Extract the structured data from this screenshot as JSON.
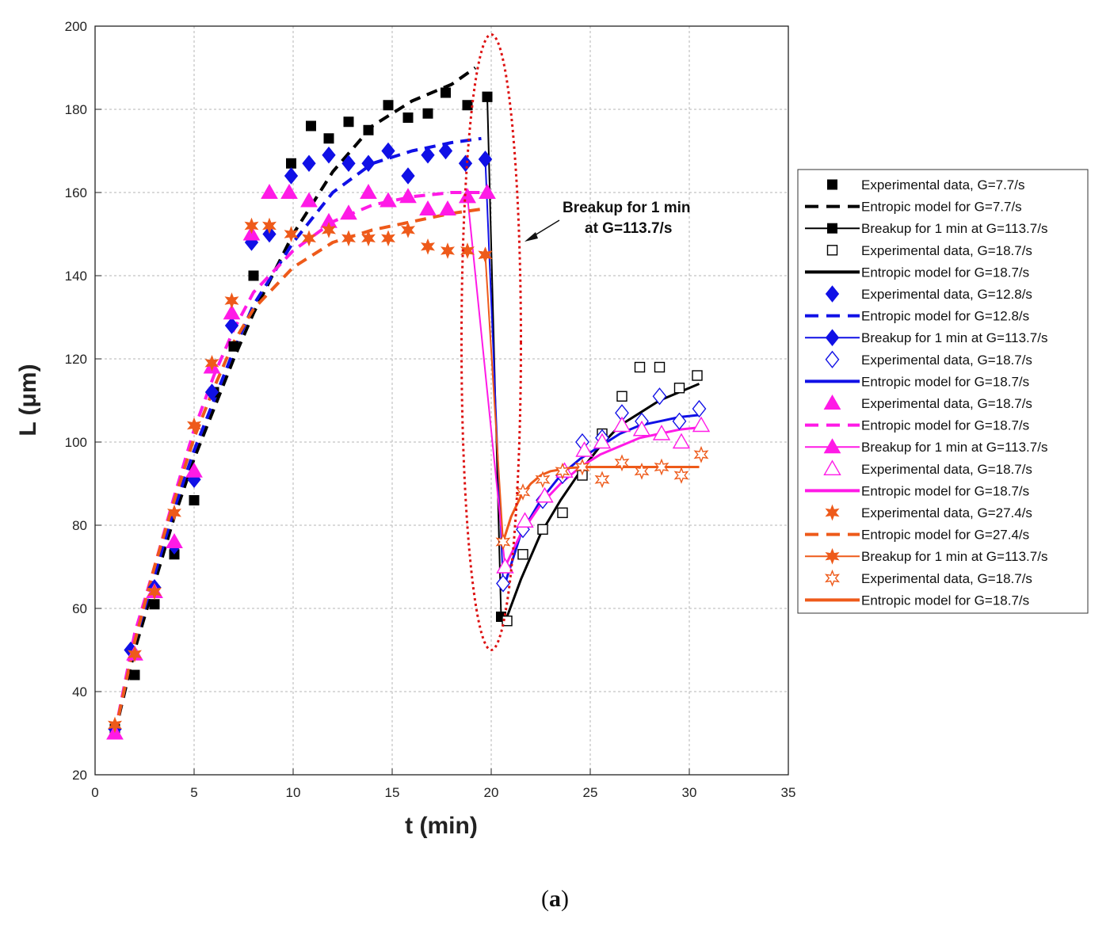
{
  "caption": {
    "open": "(",
    "letter": "a",
    "close": ")"
  },
  "annotation": {
    "line1": "Breakup for 1 min",
    "line2": "at G=113.7/s"
  },
  "chart_data": {
    "type": "scatter",
    "title": "",
    "xlabel": "t (min)",
    "ylabel": "L (μm)",
    "xlim": [
      0,
      35
    ],
    "ylim": [
      20,
      200
    ],
    "xticks": [
      0,
      5,
      10,
      15,
      20,
      25,
      30,
      35
    ],
    "yticks": [
      20,
      40,
      60,
      80,
      100,
      120,
      140,
      160,
      180,
      200
    ],
    "grid": true,
    "legend_position": "right",
    "highlight_ellipse": {
      "center": [
        20,
        124
      ],
      "radius_x": 1.5,
      "radius_y": 74
    },
    "series": [
      {
        "name": "Experimental data, G=7.7/s",
        "kind": "marker",
        "marker": "square-filled",
        "color": "#000000",
        "x": [
          1,
          2,
          3,
          4,
          5,
          6,
          7,
          8,
          9.9,
          10.9,
          11.8,
          12.8,
          13.8,
          14.8,
          15.8,
          16.8,
          17.7,
          18.8,
          19.8
        ],
        "y": [
          31,
          44,
          61,
          73,
          86,
          112,
          123,
          140,
          167,
          176,
          173,
          177,
          175,
          181,
          178,
          179,
          184,
          181,
          183
        ]
      },
      {
        "name": "Entropic model for G=7.7/s",
        "kind": "line",
        "style": "dashed",
        "width": 4,
        "color": "#000000",
        "x": [
          1,
          2,
          3,
          4,
          5,
          6,
          7,
          8,
          10,
          12,
          14,
          16,
          18,
          19.2
        ],
        "y": [
          30,
          50,
          66,
          82,
          96,
          108,
          120,
          131,
          150,
          165,
          176,
          182,
          186,
          190
        ]
      },
      {
        "name": "Breakup for 1 min at G=113.7/s",
        "kind": "line-marker",
        "marker": "square-filled",
        "width": 2,
        "color": "#000000",
        "x": [
          19.8,
          20.5
        ],
        "y": [
          183,
          58
        ]
      },
      {
        "name": "Experimental data, G=18.7/s",
        "kind": "marker",
        "marker": "square-open",
        "color": "#000000",
        "x": [
          20.8,
          21.6,
          22.6,
          23.6,
          24.6,
          25.6,
          26.6,
          27.5,
          28.5,
          29.5,
          30.4
        ],
        "y": [
          57,
          73,
          79,
          83,
          92,
          102,
          111,
          118,
          118,
          113,
          116
        ]
      },
      {
        "name": "Entropic model for G=18.7/s",
        "kind": "line",
        "style": "solid",
        "width": 3,
        "color": "#000000",
        "x": [
          20.8,
          21.5,
          22.5,
          23.5,
          24.5,
          25.5,
          26.5,
          27.5,
          28.5,
          29.5,
          30.5
        ],
        "y": [
          58,
          67,
          78,
          86,
          93,
          99,
          104,
          107,
          110,
          112,
          114
        ]
      },
      {
        "name": "Experimental data, G=12.8/s",
        "kind": "marker",
        "marker": "diamond-filled",
        "color": "#1010e6",
        "x": [
          1,
          1.8,
          3,
          4,
          5,
          5.9,
          6.9,
          7.9,
          8.8,
          9.9,
          10.8,
          11.8,
          12.8,
          13.8,
          14.8,
          15.8,
          16.8,
          17.7,
          18.7,
          19.7
        ],
        "y": [
          31,
          50,
          65,
          75,
          91,
          112,
          128,
          148,
          150,
          164,
          167,
          169,
          167,
          167,
          170,
          164,
          169,
          170,
          167,
          168
        ]
      },
      {
        "name": "Entropic model for G=12.8/s",
        "kind": "line",
        "style": "dashed",
        "width": 4,
        "color": "#1010e6",
        "x": [
          1,
          2,
          3,
          4,
          5,
          6,
          7,
          8,
          10,
          12,
          14,
          16,
          18,
          19.5
        ],
        "y": [
          30,
          52,
          68,
          84,
          98,
          110,
          122,
          133,
          148,
          160,
          167,
          170,
          172,
          173
        ]
      },
      {
        "name": "Breakup for 1 min at G=113.7/s",
        "kind": "line-marker",
        "marker": "diamond-filled",
        "width": 2,
        "color": "#1010e6",
        "x": [
          19.7,
          20.6
        ],
        "y": [
          168,
          66
        ]
      },
      {
        "name": "Experimental data, G=18.7/s",
        "kind": "marker",
        "marker": "diamond-open",
        "color": "#1010e6",
        "x": [
          20.6,
          21.6,
          22.6,
          23.6,
          24.6,
          25.6,
          26.6,
          27.6,
          28.5,
          29.5,
          30.5
        ],
        "y": [
          66,
          79,
          86,
          92,
          100,
          101,
          107,
          105,
          111,
          105,
          108
        ]
      },
      {
        "name": "Entropic model for G=18.7/s",
        "kind": "line",
        "style": "solid",
        "width": 3,
        "color": "#1010e6",
        "x": [
          20.7,
          21.5,
          22.5,
          23.5,
          24.5,
          25.5,
          26.5,
          27.5,
          28.5,
          29.5,
          30.5
        ],
        "y": [
          66,
          78,
          86,
          92,
          96,
          99,
          102,
          104,
          105,
          106,
          106.5
        ]
      },
      {
        "name": "Experimental data, G=18.7/s",
        "kind": "marker",
        "marker": "triangle-filled",
        "color": "#ff1ae6",
        "x": [
          1,
          2,
          3,
          4,
          5,
          5.9,
          6.9,
          7.9,
          8.8,
          9.8,
          10.8,
          11.8,
          12.8,
          13.8,
          14.8,
          15.8,
          16.8,
          17.8,
          18.8,
          19.8
        ],
        "y": [
          30,
          49,
          64,
          76,
          93,
          118,
          131,
          150,
          160,
          160,
          158,
          153,
          155,
          160,
          158,
          159,
          156,
          156,
          159,
          160
        ]
      },
      {
        "name": "Entropic model for G=18.7/s",
        "kind": "line",
        "style": "dashed",
        "width": 4,
        "color": "#ff1ae6",
        "x": [
          1,
          2,
          3,
          4,
          5,
          6,
          7,
          8,
          10,
          12,
          14,
          16,
          18,
          19.5
        ],
        "y": [
          30,
          54,
          70,
          87,
          103,
          116,
          127,
          136,
          146,
          153,
          157,
          159,
          160,
          160
        ]
      },
      {
        "name": "Breakup for 1 min at G=113.7/s",
        "kind": "line-marker",
        "marker": "triangle-filled",
        "width": 2,
        "color": "#ff1ae6",
        "x": [
          18.8,
          20.7
        ],
        "y": [
          159,
          70
        ]
      },
      {
        "name": "Experimental data, G=18.7/s",
        "kind": "marker",
        "marker": "triangle-open",
        "color": "#ff1ae6",
        "x": [
          20.7,
          21.7,
          22.7,
          23.7,
          24.7,
          25.6,
          26.6,
          27.6,
          28.6,
          29.6,
          30.6
        ],
        "y": [
          70,
          81,
          87,
          93,
          98,
          100,
          104,
          103,
          102,
          100,
          104
        ]
      },
      {
        "name": "Entropic model for G=18.7/s",
        "kind": "line",
        "style": "solid",
        "width": 3,
        "color": "#ff1ae6",
        "x": [
          20.7,
          21.5,
          22.5,
          23.5,
          24.5,
          25.5,
          26.5,
          27.5,
          28.5,
          29.5,
          30.5
        ],
        "y": [
          70,
          78,
          85,
          90,
          94,
          97,
          99,
          101,
          102,
          103,
          103.5
        ]
      },
      {
        "name": "Experimental data, G=27.4/s",
        "kind": "marker",
        "marker": "star-filled",
        "color": "#ee5a1a",
        "x": [
          1,
          2,
          3,
          4,
          5,
          5.9,
          6.9,
          7.9,
          8.8,
          9.9,
          10.8,
          11.8,
          12.8,
          13.8,
          14.8,
          15.8,
          16.8,
          17.8,
          18.8,
          19.7
        ],
        "y": [
          32,
          49,
          64,
          83,
          104,
          119,
          134,
          152,
          152,
          150,
          149,
          151,
          149,
          149,
          149,
          151,
          147,
          146,
          146,
          145
        ]
      },
      {
        "name": "Entropic model for G=27.4/s",
        "kind": "line",
        "style": "dashed",
        "width": 4,
        "color": "#ee5a1a",
        "x": [
          1,
          2,
          3,
          4,
          5,
          6,
          7,
          8,
          10,
          12,
          14,
          16,
          18,
          19.5
        ],
        "y": [
          30,
          52,
          70,
          86,
          101,
          113,
          124,
          132,
          142,
          148,
          151,
          153,
          155,
          156
        ]
      },
      {
        "name": "Breakup for 1 min at G=113.7/s",
        "kind": "line-marker",
        "marker": "star-filled",
        "width": 2,
        "color": "#ee5a1a",
        "x": [
          19.7,
          20.6
        ],
        "y": [
          145,
          76
        ]
      },
      {
        "name": "Experimental data, G=18.7/s",
        "kind": "marker",
        "marker": "star-open",
        "color": "#ee5a1a",
        "x": [
          20.6,
          21.6,
          22.6,
          23.6,
          24.6,
          25.6,
          26.6,
          27.6,
          28.6,
          29.6,
          30.6
        ],
        "y": [
          76,
          88,
          91,
          93,
          94,
          91,
          95,
          93,
          94,
          92,
          97
        ]
      },
      {
        "name": "Entropic model for G=18.7/s",
        "kind": "line",
        "style": "solid",
        "width": 3,
        "color": "#ee5a1a",
        "x": [
          20.6,
          21,
          21.5,
          22,
          22.5,
          23,
          24,
          25,
          26,
          27,
          28,
          29,
          30.5
        ],
        "y": [
          76,
          82,
          87,
          90,
          92,
          93,
          93.8,
          94,
          94,
          94,
          94,
          94,
          94
        ]
      }
    ]
  }
}
